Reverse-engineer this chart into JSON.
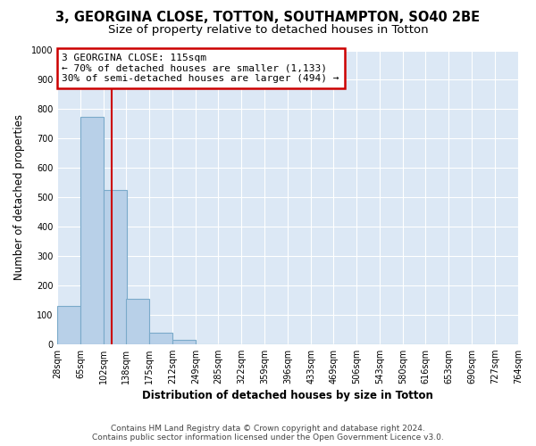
{
  "title": "3, GEORGINA CLOSE, TOTTON, SOUTHAMPTON, SO40 2BE",
  "subtitle": "Size of property relative to detached houses in Totton",
  "xlabel": "Distribution of detached houses by size in Totton",
  "ylabel": "Number of detached properties",
  "footer_lines": [
    "Contains HM Land Registry data © Crown copyright and database right 2024.",
    "Contains public sector information licensed under the Open Government Licence v3.0."
  ],
  "bin_edges": [
    28,
    65,
    102,
    138,
    175,
    212,
    249,
    285,
    322,
    359,
    396,
    433,
    469,
    506,
    543,
    580,
    616,
    653,
    690,
    727,
    764
  ],
  "bar_heights": [
    130,
    775,
    525,
    155,
    40,
    15,
    0,
    0,
    0,
    0,
    0,
    0,
    0,
    0,
    0,
    0,
    0,
    0,
    0,
    0
  ],
  "bar_color": "#b8d0e8",
  "bar_edge_color": "#7aaaca",
  "bar_edge_width": 0.8,
  "property_size": 115,
  "red_line_color": "#cc0000",
  "annotation_line1": "3 GEORGINA CLOSE: 115sqm",
  "annotation_line2": "← 70% of detached houses are smaller (1,133)",
  "annotation_line3": "30% of semi-detached houses are larger (494) →",
  "annotation_box_color": "#ffffff",
  "annotation_box_edge_color": "#cc0000",
  "ylim": [
    0,
    1000
  ],
  "yticks": [
    0,
    100,
    200,
    300,
    400,
    500,
    600,
    700,
    800,
    900,
    1000
  ],
  "bg_color": "#ffffff",
  "plot_bg_color": "#dce8f5",
  "title_fontsize": 10.5,
  "subtitle_fontsize": 9.5,
  "tick_label_fontsize": 7,
  "axis_label_fontsize": 8.5,
  "annotation_fontsize": 8,
  "footer_fontsize": 6.5
}
